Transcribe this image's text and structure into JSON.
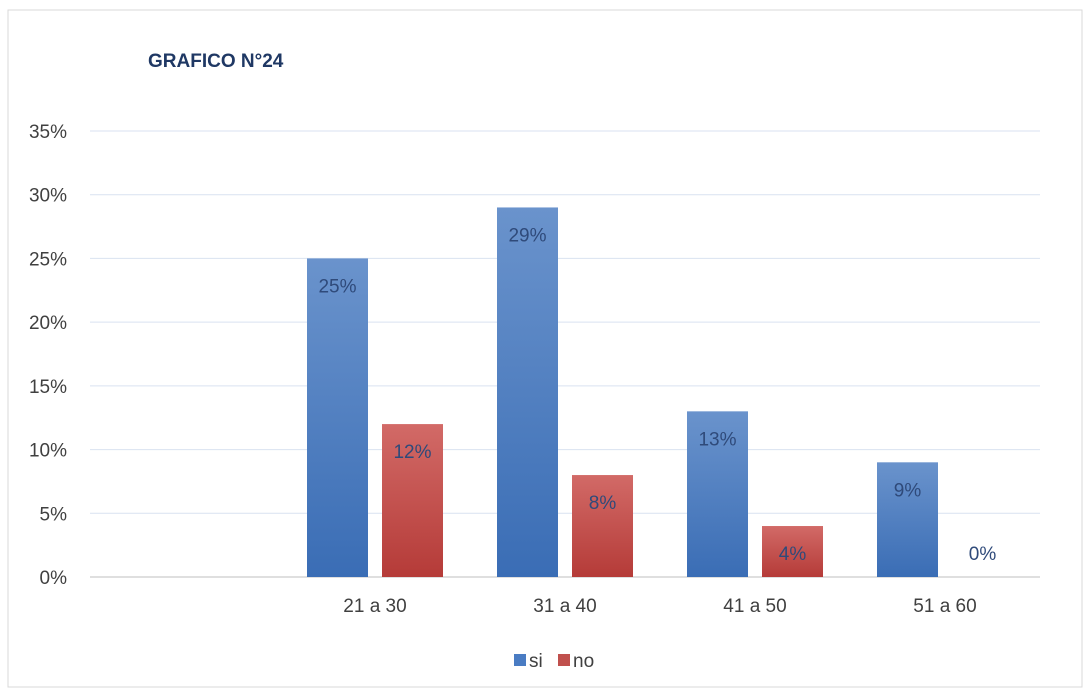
{
  "chart_data": {
    "type": "bar",
    "title": "GRAFICO N°24",
    "xlabel": "",
    "ylabel": "",
    "categories": [
      "",
      "21 a 30",
      "31 a 40",
      "41 a 50",
      "51 a 60"
    ],
    "series": [
      {
        "name": "si",
        "values": [
          null,
          25,
          29,
          13,
          9
        ],
        "labels": [
          "",
          "25%",
          "29%",
          "13%",
          "9%"
        ],
        "color": "#4a7cc3"
      },
      {
        "name": "no",
        "values": [
          null,
          12,
          8,
          4,
          0
        ],
        "labels": [
          "",
          "12%",
          "8%",
          "4%",
          "0%"
        ],
        "color": "#c0504d"
      }
    ],
    "ylim": [
      0,
      35
    ],
    "yticks": [
      "0%",
      "5%",
      "10%",
      "15%",
      "20%",
      "25%",
      "30%",
      "35%"
    ],
    "grid": true,
    "legend": "bottom"
  }
}
